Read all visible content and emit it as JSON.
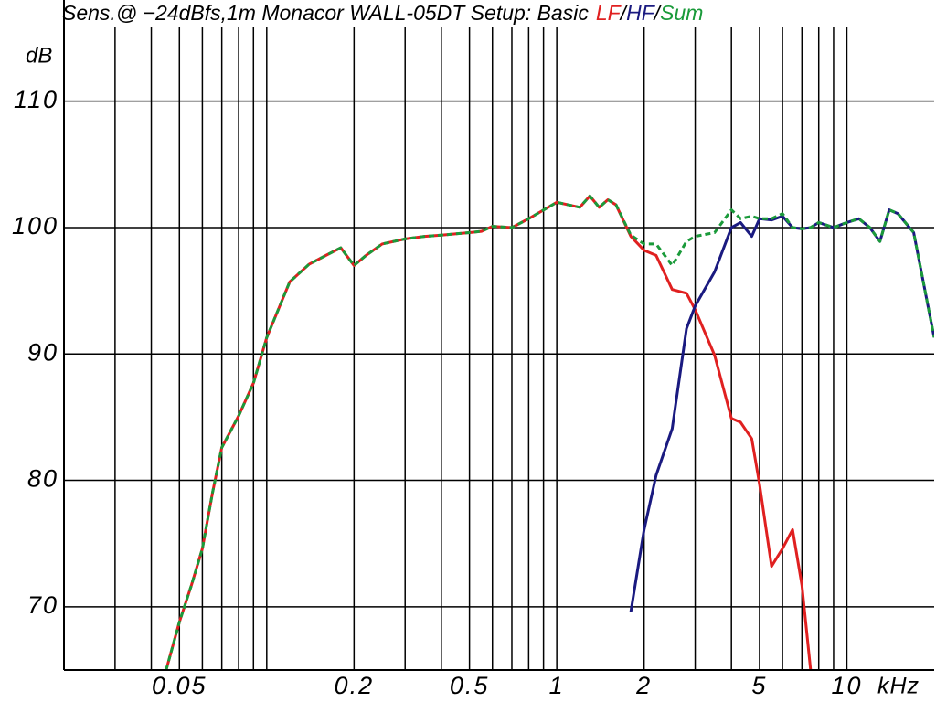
{
  "chart_data": {
    "type": "line",
    "title": "Sens.@ −24dBfs,1m  Monacor WALL-05DT Setup: Basic",
    "legend_separator": "/",
    "x_label": "kHz",
    "y_label": "dB",
    "x_scale": "log",
    "xlim": [
      0.02,
      20
    ],
    "ylim": [
      65,
      118
    ],
    "xticks": [
      0.05,
      0.2,
      0.5,
      1,
      2,
      5,
      10
    ],
    "xgrid": [
      0.03,
      0.04,
      0.05,
      0.06,
      0.07,
      0.08,
      0.09,
      0.1,
      0.2,
      0.3,
      0.4,
      0.5,
      0.6,
      0.7,
      0.8,
      0.9,
      1,
      2,
      3,
      4,
      5,
      6,
      7,
      8,
      9,
      10
    ],
    "yticks": [
      70,
      80,
      90,
      100,
      110
    ],
    "grid": true,
    "x": [
      0.045,
      0.05,
      0.055,
      0.06,
      0.065,
      0.07,
      0.08,
      0.09,
      0.1,
      0.12,
      0.14,
      0.16,
      0.18,
      0.2,
      0.22,
      0.25,
      0.3,
      0.35,
      0.4,
      0.5,
      0.55,
      0.6,
      0.7,
      0.8,
      1,
      1.2,
      1.3,
      1.4,
      1.5,
      1.6,
      1.8,
      2,
      2.2,
      2.5,
      2.8,
      3,
      3.5,
      4,
      4.3,
      4.7,
      5,
      5.5,
      6,
      6.5,
      7,
      7.5,
      8,
      9,
      10,
      11,
      12,
      13,
      14,
      15,
      17,
      20
    ],
    "series": [
      {
        "name": "LF",
        "color": "#e02020",
        "linestyle": "solid",
        "values": [
          65,
          68.8,
          71.7,
          74.6,
          79,
          82.6,
          85.1,
          87.7,
          91.3,
          95.7,
          97.1,
          97.8,
          98.4,
          97.0,
          97.8,
          98.7,
          99.1,
          99.3,
          99.4,
          99.6,
          99.7,
          100.1,
          100,
          100.7,
          102,
          101.6,
          102.5,
          101.6,
          102.2,
          101.8,
          99.3,
          98.2,
          97.8,
          95.1,
          94.8,
          93.5,
          89.9,
          84.9,
          84.6,
          83.3,
          79.7,
          73.2,
          74.6,
          76.1,
          71.7,
          65,
          null,
          null,
          null,
          null,
          null,
          null,
          null,
          null,
          null,
          null
        ]
      },
      {
        "name": "HF",
        "color": "#1a1a80",
        "linestyle": "solid",
        "values": [
          null,
          null,
          null,
          null,
          null,
          null,
          null,
          null,
          null,
          null,
          null,
          null,
          null,
          null,
          null,
          null,
          null,
          null,
          null,
          null,
          null,
          null,
          null,
          null,
          null,
          null,
          null,
          null,
          null,
          null,
          69.6,
          76.1,
          80.4,
          84.1,
          92,
          93.8,
          96.5,
          100,
          100.4,
          99.3,
          100.7,
          100.6,
          100.9,
          100,
          99.9,
          100,
          100.4,
          100,
          100.4,
          100.7,
          100,
          98.9,
          101.4,
          101.1,
          99.6,
          91.3
        ]
      },
      {
        "name": "Sum",
        "color": "#1a9a3a",
        "linestyle": "dashed",
        "values": [
          65,
          68.8,
          71.7,
          74.6,
          79,
          82.6,
          85.1,
          87.7,
          91.3,
          95.7,
          97.1,
          97.8,
          98.4,
          97.0,
          97.8,
          98.7,
          99.1,
          99.3,
          99.4,
          99.6,
          99.7,
          100.1,
          100,
          100.7,
          102,
          101.6,
          102.5,
          101.6,
          102.2,
          101.8,
          99.4,
          98.7,
          98.7,
          97,
          98.9,
          99.3,
          99.6,
          101.4,
          100.7,
          100.9,
          100.7,
          100.7,
          101.1,
          100,
          99.9,
          100,
          100.4,
          100,
          100.4,
          100.7,
          100,
          98.9,
          101.4,
          101.1,
          99.6,
          91.3
        ]
      }
    ]
  }
}
